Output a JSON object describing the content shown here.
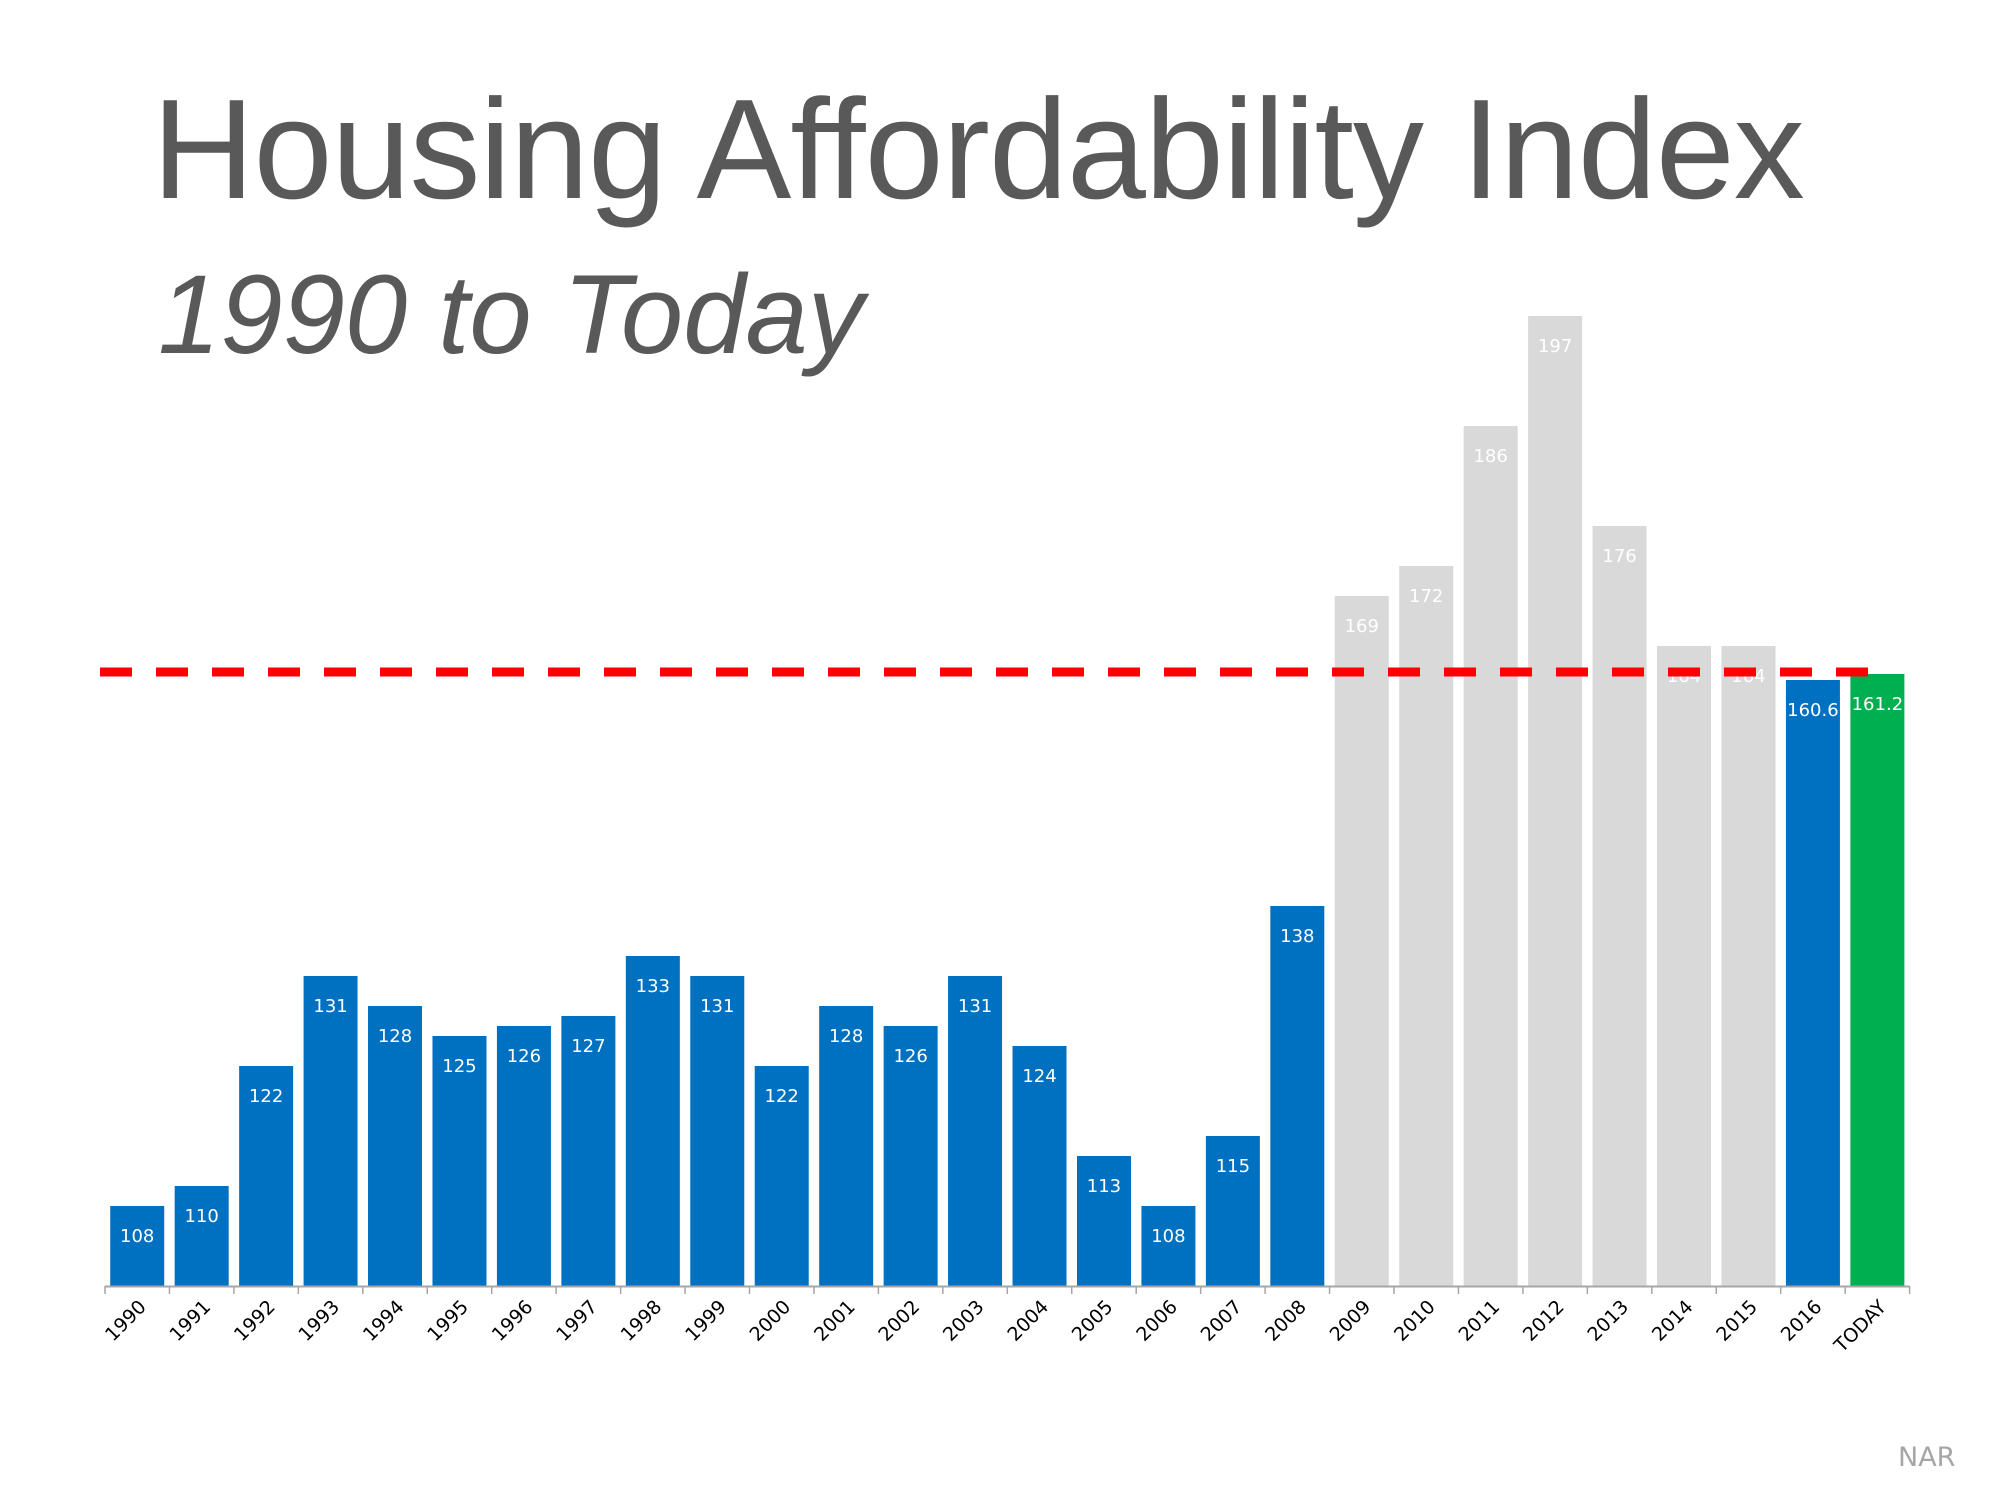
{
  "chart_data": {
    "type": "bar",
    "title": "Housing Affordability Index",
    "subtitle": "1990 to Today",
    "source": "NAR",
    "categories": [
      "1990",
      "1991",
      "1992",
      "1993",
      "1994",
      "1995",
      "1996",
      "1997",
      "1998",
      "1999",
      "2000",
      "2001",
      "2002",
      "2003",
      "2004",
      "2005",
      "2006",
      "2007",
      "2008",
      "2009",
      "2010",
      "2011",
      "2012",
      "2013",
      "2014",
      "2015",
      "2016",
      "TODAY"
    ],
    "values": [
      108,
      110,
      122,
      131,
      128,
      125,
      126,
      127,
      133,
      131,
      122,
      128,
      126,
      131,
      124,
      113,
      108,
      115,
      138,
      169,
      172,
      186,
      197,
      176,
      164,
      164,
      160.6,
      161.2
    ],
    "labels": [
      "108",
      "110",
      "122",
      "131",
      "128",
      "125",
      "126",
      "127",
      "133",
      "131",
      "122",
      "128",
      "126",
      "131",
      "124",
      "113",
      "108",
      "115",
      "138",
      "169",
      "172",
      "186",
      "197",
      "176",
      "164",
      "164",
      "160.6",
      "161.2"
    ],
    "bar_colors": [
      "#0070c0",
      "#0070c0",
      "#0070c0",
      "#0070c0",
      "#0070c0",
      "#0070c0",
      "#0070c0",
      "#0070c0",
      "#0070c0",
      "#0070c0",
      "#0070c0",
      "#0070c0",
      "#0070c0",
      "#0070c0",
      "#0070c0",
      "#0070c0",
      "#0070c0",
      "#0070c0",
      "#0070c0",
      "#d9d9d9",
      "#d9d9d9",
      "#d9d9d9",
      "#d9d9d9",
      "#d9d9d9",
      "#d9d9d9",
      "#d9d9d9",
      "#0070c0",
      "#00b050"
    ],
    "reference_line": {
      "value": 161.2,
      "color": "#ff0000",
      "style": "dashed"
    },
    "ylim": [
      100,
      200
    ],
    "grid": false,
    "xlabel": "",
    "ylabel": ""
  }
}
